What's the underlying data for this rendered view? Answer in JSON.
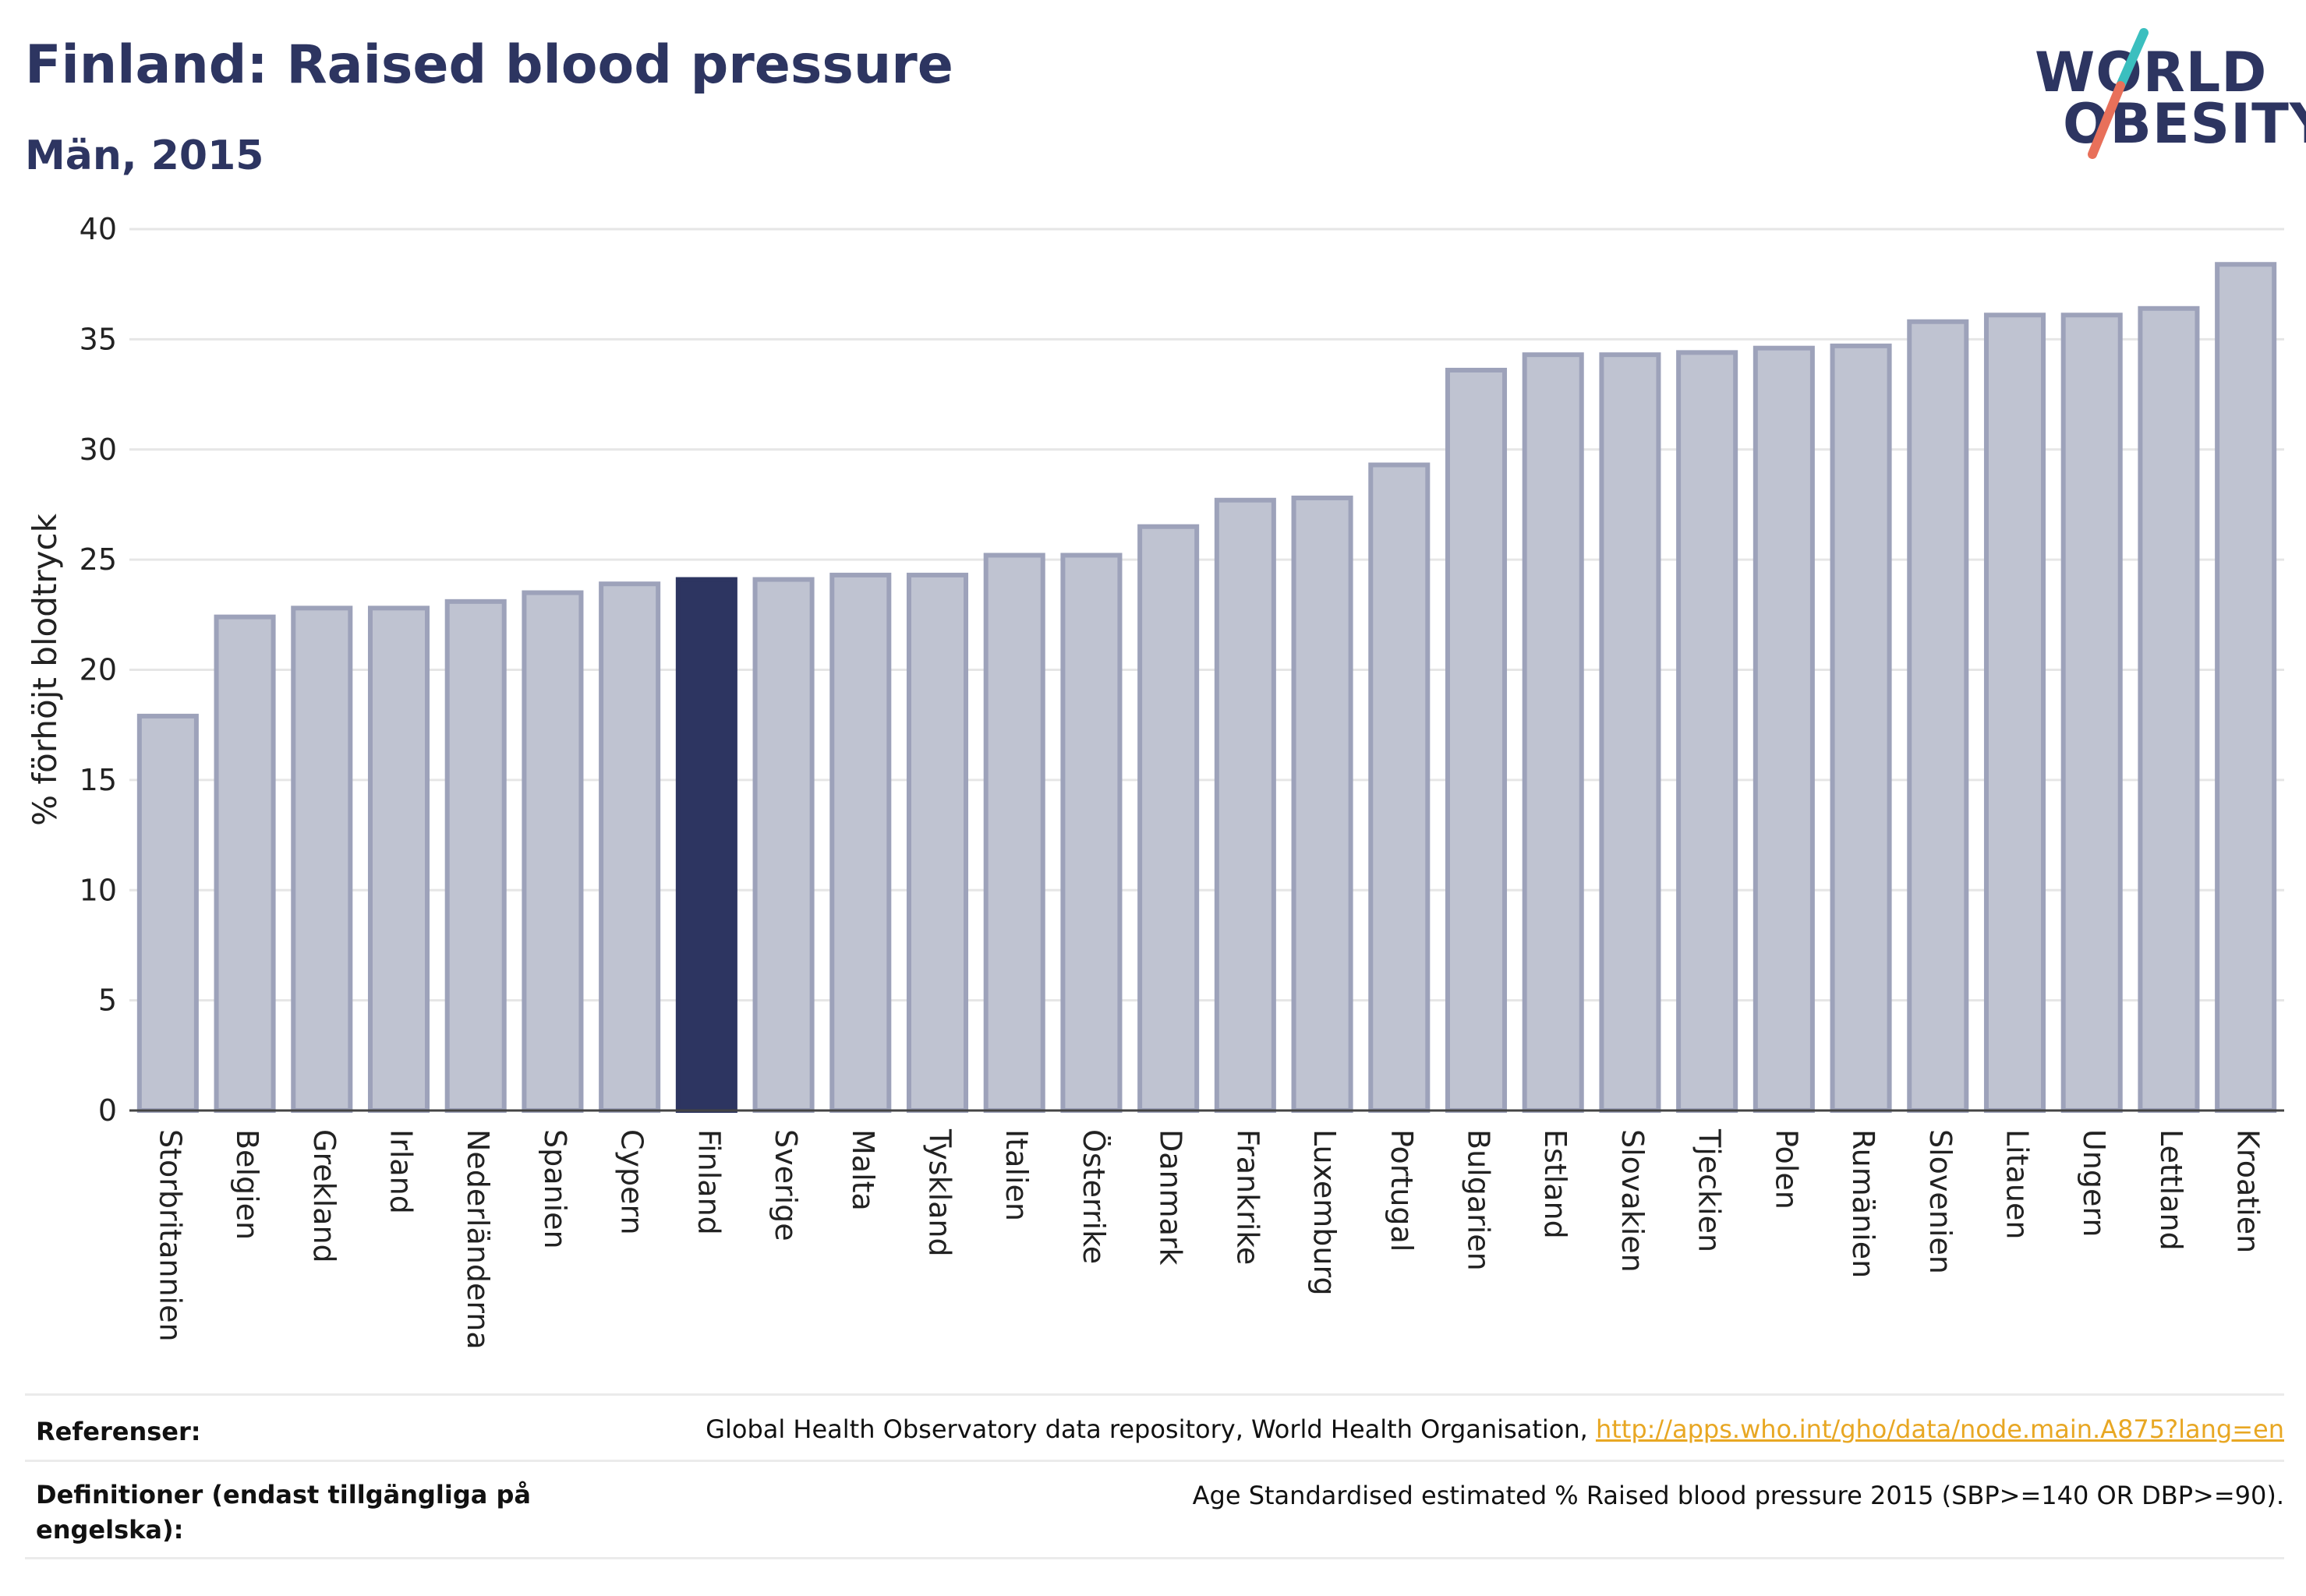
{
  "header": {
    "title": "Finland: Raised blood pressure",
    "subtitle": "Män, 2015"
  },
  "logo": {
    "line1": "WORLD",
    "line2": "OBESITY",
    "colors": {
      "text": "#2d3561",
      "slash_top": "#3bbfbf",
      "slash_bottom": "#e8705a"
    }
  },
  "chart_data": {
    "type": "bar",
    "ylabel": "% förhöjt blodtryck",
    "xlabel": "",
    "ylim": [
      0,
      40
    ],
    "yticks": [
      0,
      5,
      10,
      15,
      20,
      25,
      30,
      35,
      40
    ],
    "grid": true,
    "highlight": "Finland",
    "colors": {
      "bar": "#bfc3d1",
      "bar_border": "#9da2ba",
      "highlight": "#2d3561",
      "grid": "#e6e6e6"
    },
    "categories": [
      "Storbritannien",
      "Belgien",
      "Grekland",
      "Irland",
      "Nederländerna",
      "Spanien",
      "Cypern",
      "Finland",
      "Sverige",
      "Malta",
      "Tyskland",
      "Italien",
      "Österrike",
      "Danmark",
      "Frankrike",
      "Luxemburg",
      "Portugal",
      "Bulgarien",
      "Estland",
      "Slovakien",
      "Tjeckien",
      "Polen",
      "Rumänien",
      "Slovenien",
      "Litauen",
      "Ungern",
      "Lettland",
      "Kroatien"
    ],
    "values": [
      17.9,
      22.4,
      22.8,
      22.8,
      23.1,
      23.5,
      23.9,
      24.1,
      24.1,
      24.3,
      24.3,
      25.2,
      25.2,
      26.5,
      27.7,
      27.8,
      29.3,
      33.6,
      34.3,
      34.3,
      34.4,
      34.6,
      34.7,
      35.8,
      36.1,
      36.1,
      36.4,
      38.4
    ]
  },
  "footer": {
    "references_label": "Referenser:",
    "references_text": "Global Health Observatory data repository, World Health Organisation, ",
    "references_link": "http://apps.who.int/gho/data/node.main.A875?lang=en",
    "definitions_label": "Definitioner (endast tillgängliga på engelska):",
    "definitions_text": "Age Standardised estimated % Raised blood pressure 2015 (SBP>=140 OR DBP>=90)."
  }
}
